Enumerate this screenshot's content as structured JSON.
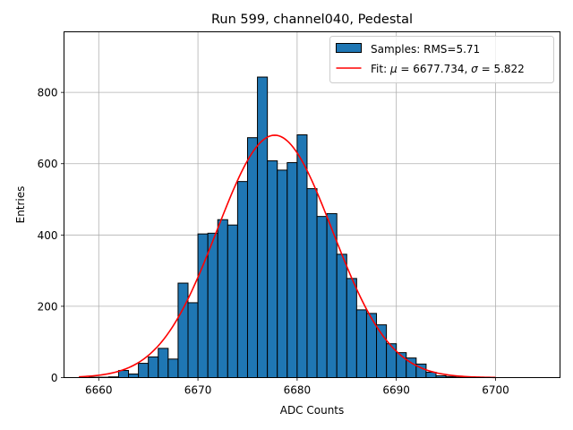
{
  "chart_data": {
    "type": "bar",
    "title": "Run 599, channel040, Pedestal",
    "xlabel": "ADC Counts",
    "ylabel": "Entries",
    "xlim": [
      6656.5,
      6706.5
    ],
    "ylim": [
      0,
      970
    ],
    "xticks": [
      6660,
      6670,
      6680,
      6690,
      6700
    ],
    "yticks": [
      0,
      200,
      400,
      600,
      800
    ],
    "grid": true,
    "legend_position": "top-right",
    "bin_width": 1,
    "histogram": {
      "name": "Samples: RMS=5.71",
      "color": "#1f77b4",
      "edgecolor": "#000000",
      "bin_left_edges": [
        6659,
        6660,
        6661,
        6662,
        6663,
        6664,
        6665,
        6666,
        6667,
        6668,
        6669,
        6670,
        6671,
        6672,
        6673,
        6674,
        6675,
        6676,
        6677,
        6678,
        6679,
        6680,
        6681,
        6682,
        6683,
        6684,
        6685,
        6686,
        6687,
        6688,
        6689,
        6690,
        6691,
        6692,
        6693,
        6694,
        6695,
        6696
      ],
      "counts": [
        1,
        1,
        2,
        20,
        10,
        40,
        58,
        82,
        52,
        265,
        210,
        403,
        405,
        443,
        428,
        550,
        673,
        843,
        608,
        582,
        603,
        681,
        530,
        452,
        460,
        346,
        278,
        190,
        180,
        148,
        95,
        70,
        55,
        38,
        15,
        5,
        3,
        1
      ]
    },
    "fit": {
      "name": "Fit: μ = 6677.734, σ = 5.822",
      "mu": 6677.734,
      "sigma": 5.822,
      "amplitude": 680,
      "x_range": [
        6658,
        6700
      ],
      "color": "#ff0000"
    },
    "legend": {
      "hist_label_prefix": "Samples: RMS=",
      "hist_label_value": "5.71",
      "fit_label_prefix": "Fit: ",
      "fit_mu_symbol": "μ",
      "fit_mu_value": " = 6677.734, ",
      "fit_sigma_symbol": "σ",
      "fit_sigma_value": " = 5.822"
    }
  }
}
